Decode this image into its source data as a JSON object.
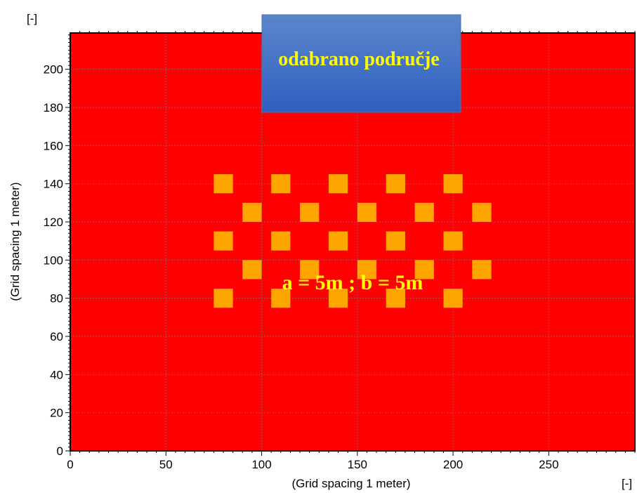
{
  "chart_data": {
    "type": "heatmap",
    "background_color": "#ff0000",
    "cell_color": "#ffa500",
    "xlabel": "(Grid spacing 1 meter)",
    "ylabel": "(Grid spacing 1 meter)",
    "x_unit_label": "[-]",
    "y_unit_label": "[-]",
    "xlim": [
      0,
      295
    ],
    "ylim": [
      0,
      219
    ],
    "x_ticks": [
      0,
      50,
      100,
      150,
      200,
      250
    ],
    "y_ticks": [
      0,
      20,
      40,
      60,
      80,
      100,
      120,
      140,
      160,
      180,
      200
    ],
    "grid": true,
    "cell_size": 10,
    "cells": [
      {
        "x": 80,
        "y": 140
      },
      {
        "x": 110,
        "y": 140
      },
      {
        "x": 140,
        "y": 140
      },
      {
        "x": 170,
        "y": 140
      },
      {
        "x": 200,
        "y": 140
      },
      {
        "x": 95,
        "y": 125
      },
      {
        "x": 125,
        "y": 125
      },
      {
        "x": 155,
        "y": 125
      },
      {
        "x": 185,
        "y": 125
      },
      {
        "x": 215,
        "y": 125
      },
      {
        "x": 80,
        "y": 110
      },
      {
        "x": 110,
        "y": 110
      },
      {
        "x": 140,
        "y": 110
      },
      {
        "x": 170,
        "y": 110
      },
      {
        "x": 200,
        "y": 110
      },
      {
        "x": 95,
        "y": 95
      },
      {
        "x": 125,
        "y": 95
      },
      {
        "x": 155,
        "y": 95
      },
      {
        "x": 185,
        "y": 95
      },
      {
        "x": 215,
        "y": 95
      },
      {
        "x": 80,
        "y": 80
      },
      {
        "x": 110,
        "y": 80
      },
      {
        "x": 140,
        "y": 80
      },
      {
        "x": 170,
        "y": 80
      },
      {
        "x": 200,
        "y": 80
      }
    ],
    "annotations": {
      "area_label": "odabrano područje",
      "spacing_label": "a = 5m ; b = 5m"
    },
    "colors": {
      "label_box_top": "#5b86cc",
      "label_box_bottom": "#2f5fbf",
      "annotation_text": "#ffff00"
    }
  }
}
